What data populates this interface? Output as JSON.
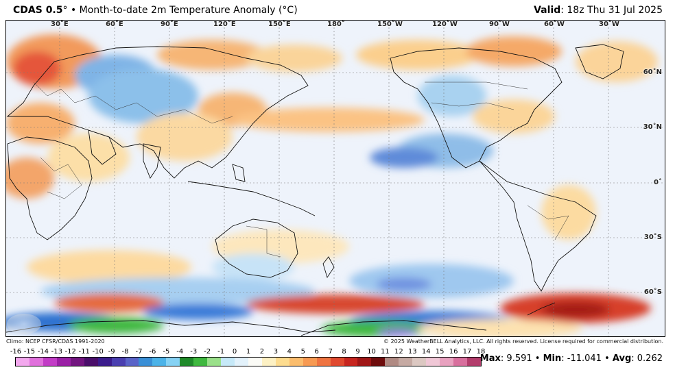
{
  "header": {
    "product": "CDAS 0.5",
    "degree": "°",
    "title": "• Month-to-date 2m Temperature Anomaly (°C)",
    "valid_label": "Valid",
    "valid_value": ": 18z Thu 31 Jul 2025"
  },
  "map": {
    "longitude_labels": [
      "30˚E",
      "60˚E",
      "90˚E",
      "120˚E",
      "150˚E",
      "180˚",
      "150˚W",
      "120˚W",
      "90˚W",
      "60˚W",
      "30˚W"
    ],
    "latitude_labels": [
      "60˚N",
      "30˚N",
      "0˚",
      "30˚S",
      "60˚S"
    ]
  },
  "footer": {
    "climo": "Climo: NCEP CFSR/CDAS 1991-2020",
    "copyright": "© 2025 WeatherBELL Analytics, LLC. All rights reserved. License required for commercial distribution."
  },
  "colorbar": {
    "ticks": [
      "-16",
      "-15",
      "-14",
      "-13",
      "-12",
      "-11",
      "-10",
      "-9",
      "-8",
      "-7",
      "-6",
      "-5",
      "-4",
      "-3",
      "-2",
      "-1",
      "0",
      "1",
      "2",
      "3",
      "4",
      "5",
      "6",
      "7",
      "8",
      "9",
      "10",
      "11",
      "12",
      "13",
      "14",
      "15",
      "16",
      "17",
      "18"
    ],
    "colors": [
      "#f3a8ee",
      "#e070dc",
      "#c23cc6",
      "#9a1fa5",
      "#72157f",
      "#4a0e6a",
      "#3b1c8c",
      "#4a3fb0",
      "#5a64c8",
      "#3a8fd6",
      "#4cb3e8",
      "#86d2f4",
      "#1f8a2a",
      "#3fb83f",
      "#9ae08a",
      "#c6e9f8",
      "#e3f2fb",
      "#fbfbf6",
      "#fdf1c4",
      "#fddc8f",
      "#fbbd6d",
      "#f79a52",
      "#ef7441",
      "#e0492f",
      "#c7251f",
      "#a01616",
      "#6e0c0c",
      "#b08a83",
      "#c6aaa3",
      "#dcc8c2",
      "#f0c7d6",
      "#e8a1bf",
      "#d86f9d",
      "#b33d6c"
    ]
  },
  "stats": {
    "max_label": "Max",
    "max_value": ": 9.591",
    "min_label": "Min",
    "min_value": ": -11.041",
    "avg_label": "Avg",
    "avg_value": ": 0.262",
    "sep": " • "
  }
}
